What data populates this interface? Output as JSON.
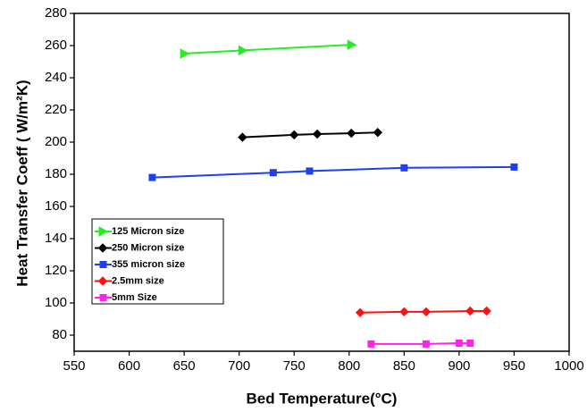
{
  "chart_data": {
    "type": "line",
    "x_label": "Bed Temperature(°C)",
    "y_label": "Heat Transfer Coeff ( W/m²K)",
    "xlim": [
      550,
      1000
    ],
    "xticks": [
      550,
      600,
      650,
      700,
      750,
      800,
      850,
      900,
      950,
      1000
    ],
    "ylim": [
      70,
      280
    ],
    "yticks": [
      80,
      100,
      120,
      140,
      160,
      180,
      200,
      220,
      240,
      260,
      280
    ],
    "series": [
      {
        "name": "125 Micron size",
        "color": "#22ee22",
        "marker": "triangle",
        "x": [
          650,
          703,
          802
        ],
        "values": [
          255,
          257,
          260.5
        ]
      },
      {
        "name": "250 Micron size",
        "color": "#000000",
        "marker": "diamond",
        "x": [
          703,
          750,
          771,
          802,
          826
        ],
        "values": [
          203,
          204.5,
          205,
          205.5,
          206
        ]
      },
      {
        "name": "355 micron size",
        "color": "#1f3ff0",
        "marker": "square",
        "x": [
          621,
          731,
          764,
          850,
          950
        ],
        "values": [
          178,
          181,
          182,
          184,
          184.5
        ]
      },
      {
        "name": "2.5mm size",
        "color": "#ff1111",
        "marker": "diamond",
        "x": [
          810,
          850,
          870,
          910,
          925
        ],
        "values": [
          94,
          94.5,
          94.5,
          95,
          95
        ]
      },
      {
        "name": "5mm Size",
        "color": "#ff22ee",
        "marker": "square",
        "x": [
          820,
          870,
          900,
          910
        ],
        "values": [
          74.5,
          74.5,
          75,
          75
        ]
      }
    ]
  }
}
